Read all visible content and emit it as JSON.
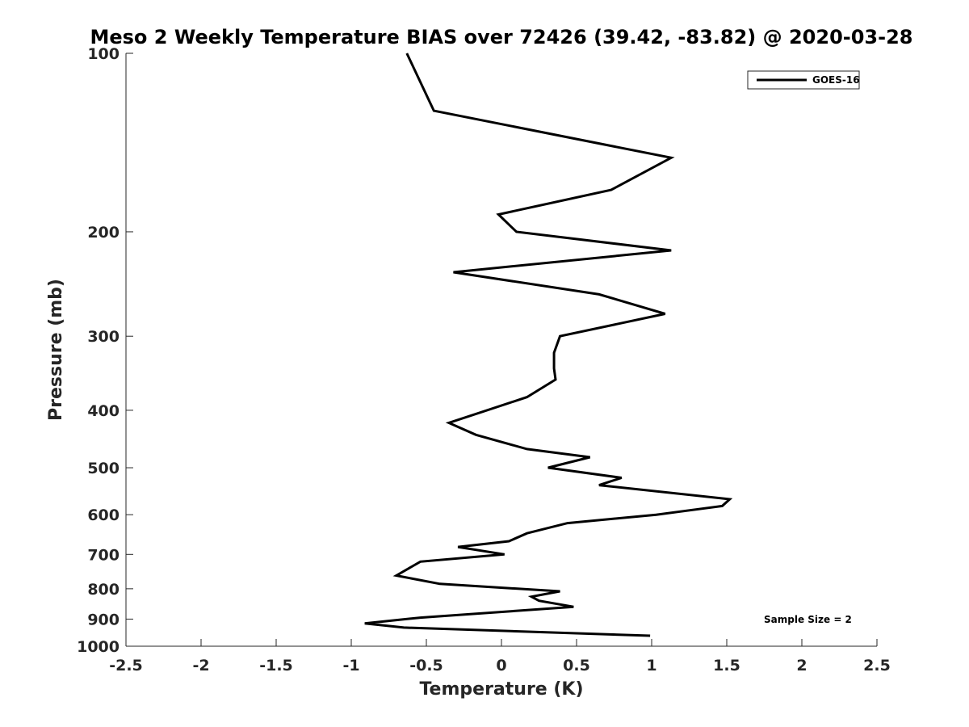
{
  "chart_data": {
    "type": "line",
    "title": "Meso 2 Weekly Temperature BIAS over 72426 (39.42, -83.82) @ 2020-03-28",
    "xlabel": "Temperature (K)",
    "ylabel": "Pressure (mb)",
    "xlim": [
      -2.5,
      2.5
    ],
    "ylim": [
      100,
      1000
    ],
    "y_scale": "log",
    "y_reversed": true,
    "grid": false,
    "legend_position": "top-right",
    "x_ticks": [
      -2.5,
      -2,
      -1.5,
      -1,
      -0.5,
      0,
      0.5,
      1,
      1.5,
      2,
      2.5
    ],
    "x_tick_labels": [
      "-2.5",
      "-2",
      "-1.5",
      "-1",
      "-0.5",
      "0",
      "0.5",
      "1",
      "1.5",
      "2",
      "2.5"
    ],
    "y_ticks": [
      100,
      200,
      300,
      400,
      500,
      600,
      700,
      800,
      900,
      1000
    ],
    "y_tick_labels": [
      "100",
      "200",
      "300",
      "400",
      "500",
      "600",
      "700",
      "800",
      "900",
      "1000"
    ],
    "series": [
      {
        "name": "GOES-16",
        "color": "#000000",
        "points": [
          {
            "t": -0.63,
            "p": 100
          },
          {
            "t": -0.45,
            "p": 125
          },
          {
            "t": 1.13,
            "p": 150
          },
          {
            "t": 0.73,
            "p": 170
          },
          {
            "t": -0.02,
            "p": 187
          },
          {
            "t": 0.1,
            "p": 200
          },
          {
            "t": 1.13,
            "p": 215
          },
          {
            "t": -0.32,
            "p": 234
          },
          {
            "t": 0.65,
            "p": 255
          },
          {
            "t": 1.09,
            "p": 275
          },
          {
            "t": 0.39,
            "p": 300
          },
          {
            "t": 0.35,
            "p": 320
          },
          {
            "t": 0.35,
            "p": 340
          },
          {
            "t": 0.36,
            "p": 355
          },
          {
            "t": 0.17,
            "p": 380
          },
          {
            "t": -0.35,
            "p": 420
          },
          {
            "t": -0.17,
            "p": 440
          },
          {
            "t": 0.17,
            "p": 465
          },
          {
            "t": 0.59,
            "p": 480
          },
          {
            "t": 0.31,
            "p": 500
          },
          {
            "t": 0.8,
            "p": 520
          },
          {
            "t": 0.65,
            "p": 535
          },
          {
            "t": 1.52,
            "p": 565
          },
          {
            "t": 1.47,
            "p": 580
          },
          {
            "t": 1.03,
            "p": 600
          },
          {
            "t": 0.44,
            "p": 620
          },
          {
            "t": 0.17,
            "p": 645
          },
          {
            "t": 0.05,
            "p": 665
          },
          {
            "t": -0.29,
            "p": 680
          },
          {
            "t": 0.02,
            "p": 700
          },
          {
            "t": -0.54,
            "p": 720
          },
          {
            "t": -0.7,
            "p": 760
          },
          {
            "t": -0.41,
            "p": 785
          },
          {
            "t": 0.39,
            "p": 808
          },
          {
            "t": 0.2,
            "p": 825
          },
          {
            "t": 0.25,
            "p": 838
          },
          {
            "t": 0.48,
            "p": 858
          },
          {
            "t": -0.54,
            "p": 895
          },
          {
            "t": -0.91,
            "p": 915
          },
          {
            "t": -0.65,
            "p": 930
          },
          {
            "t": 0.99,
            "p": 960
          }
        ]
      }
    ],
    "annotation": "Sample Size = 2"
  }
}
